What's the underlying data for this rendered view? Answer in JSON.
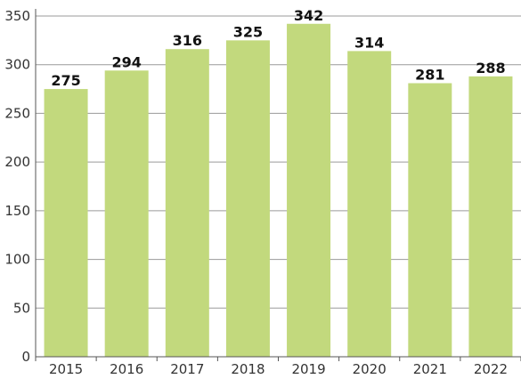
{
  "chart_data": {
    "type": "bar",
    "title": "",
    "xlabel": "",
    "ylabel": "",
    "categories": [
      "2015",
      "2016",
      "2017",
      "2018",
      "2019",
      "2020",
      "2021",
      "2022"
    ],
    "values": [
      275,
      294,
      316,
      325,
      342,
      314,
      281,
      288
    ],
    "ylim": [
      0,
      350
    ],
    "yticks": [
      0,
      50,
      100,
      150,
      200,
      250,
      300,
      350
    ],
    "grid": true,
    "legend": "none",
    "bar_color": "#c2d97d",
    "grid_color": "#9a9a9a",
    "axis_color": "#555555",
    "data_labels": [
      "275",
      "294",
      "316",
      "325",
      "342",
      "314",
      "281",
      "288"
    ],
    "ytick_labels": [
      "0",
      "50",
      "100",
      "150",
      "200",
      "250",
      "300",
      "350"
    ]
  }
}
